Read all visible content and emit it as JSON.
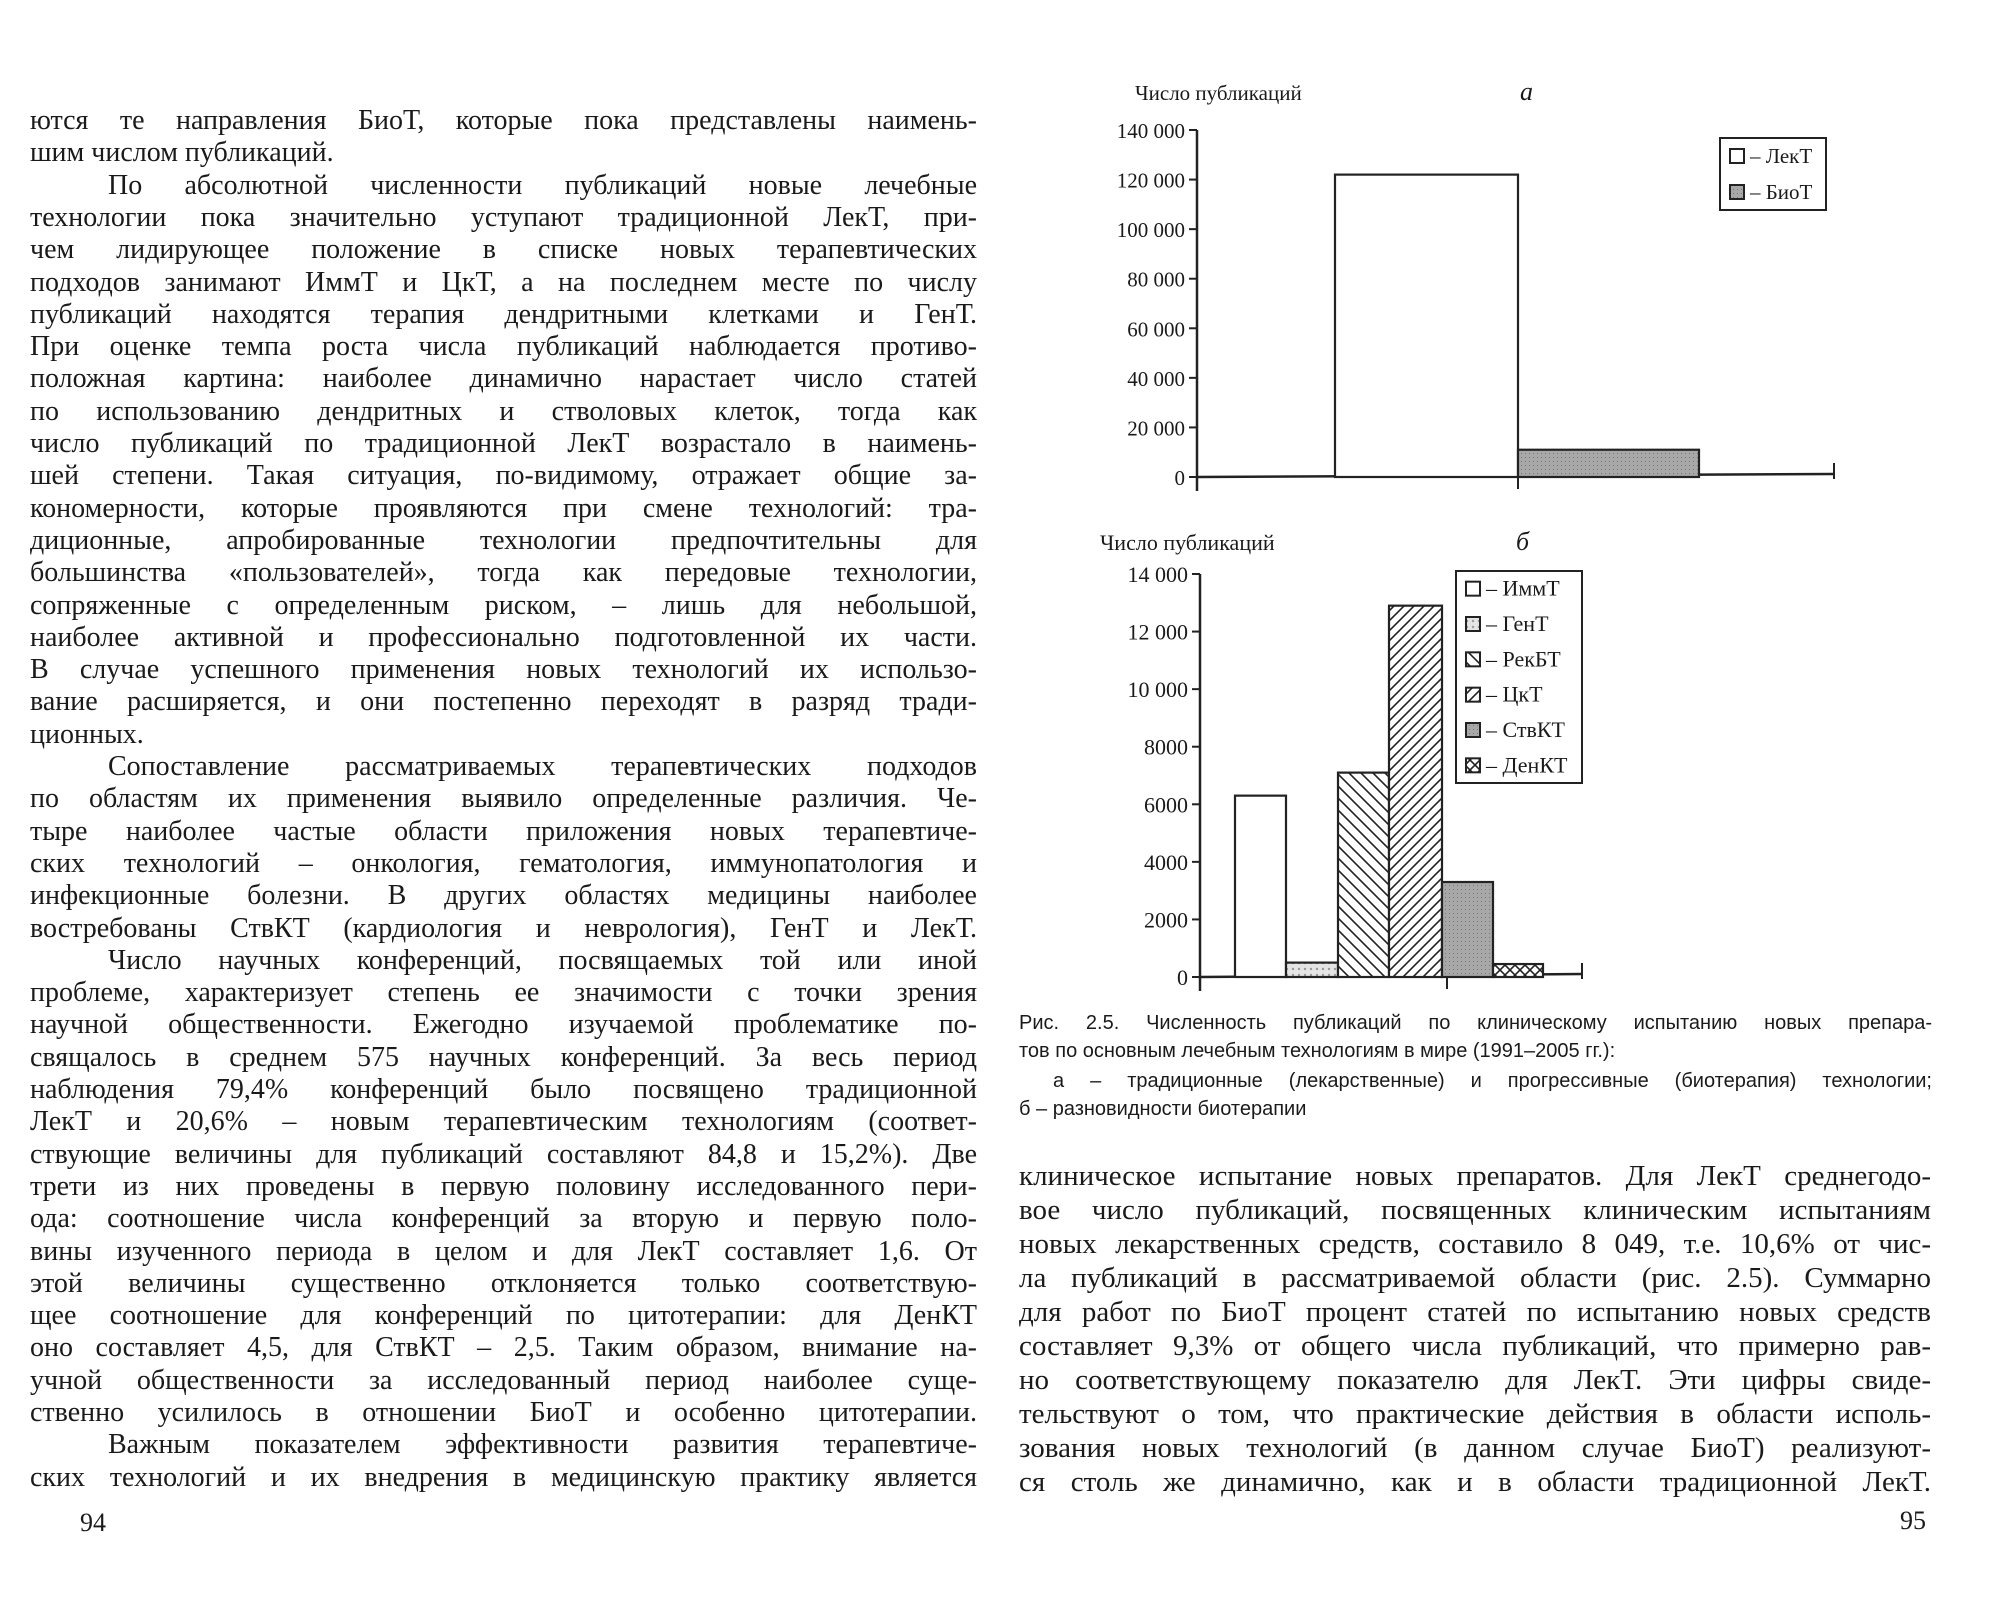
{
  "left_page": {
    "page_number": "94",
    "lines": [
      "ются те направления БиоТ, которые пока представлены наимень-",
      "шим числом публикаций.",
      "По абсолютной численности публикаций новые лечебные",
      "технологии пока значительно уступают традиционной ЛекТ, при-",
      "чем лидирующее положение в списке новых терапевтических",
      "подходов занимают ИммТ и ЦкТ, а на последнем месте по числу",
      "публикаций находятся терапия дендритными клетками и ГенТ.",
      "При оценке темпа роста числа публикаций наблюдается противо-",
      "положная картина: наиболее динамично нарастает число статей",
      "по использованию дендритных и стволовых клеток, тогда как",
      "число публикаций по традиционной ЛекТ возрастало в наимень-",
      "шей степени. Такая ситуация, по-видимому, отражает общие за-",
      "кономерности, которые проявляются при смене технологий: тра-",
      "диционные, апробированные технологии предпочтительны для",
      "большинства «пользователей», тогда как передовые технологии,",
      "сопряженные с определенным риском, – лишь для небольшой,",
      "наиболее активной и профессионально подготовленной их части.",
      "В случае успешного применения новых технологий их использо-",
      "вание расширяется, и они постепенно переходят в разряд тради-",
      "ционных.",
      "Сопоставление рассматриваемых терапевтических подходов",
      "по областям их применения выявило определенные различия. Че-",
      "тыре наиболее частые области приложения новых терапевтиче-",
      "ских технологий – онкология, гематология, иммунопатология и",
      "инфекционные болезни. В других областях медицины наиболее",
      "востребованы СтвКТ (кардиология и неврология), ГенТ и ЛекТ.",
      "Число научных конференций, посвящаемых той или иной",
      "проблеме, характеризует степень ее значимости с точки зрения",
      "научной общественности. Ежегодно изучаемой проблематике по-",
      "свящалось в среднем 575 научных конференций. За весь период",
      "наблюдения 79,4% конференций было посвящено традиционной",
      "ЛекТ и 20,6% – новым терапевтическим технологиям (соответ-",
      "ствующие величины для публикаций составляют 84,8 и 15,2%). Две",
      "трети из них проведены в первую половину исследованного пери-",
      "ода: соотношение числа конференций за вторую и первую поло-",
      "вины изученного периода в целом и для ЛекТ составляет 1,6. От",
      "этой величины существенно отклоняется только соответствую-",
      "щее соотношение для конференций по цитотерапии: для ДенКТ",
      "оно составляет 4,5, для СтвКТ – 2,5. Таким образом, внимание на-",
      "учной общественности за исследованный период наиболее суще-",
      "ственно усилилось в отношении БиоТ и особенно цитотерапии.",
      "Важным показателем эффективности развития терапевтиче-",
      "ских технологий и их внедрения в медицинскую практику является"
    ]
  },
  "right_page": {
    "page_number": "95",
    "caption": [
      "Рис. 2.5. Численность публикаций по клиническому испытанию новых препара-",
      "тов по основным лечебным технологиям в мире (1991–2005 гг.):",
      "а – традиционные (лекарственные) и прогрессивные (биотерапия) технологии;",
      "б – разновидности биотерапии"
    ],
    "lines": [
      "клиническое испытание новых препаратов. Для ЛекТ среднегодо-",
      "вое число публикаций, посвященных клиническим испытаниям",
      "новых лекарственных средств, составило 8 049, т.е. 10,6% от чис-",
      "ла публикаций в рассматриваемой области (рис. 2.5). Суммарно",
      "для работ по БиоТ процент статей по испытанию новых средств",
      "составляет 9,3% от общего числа публикаций, что примерно рав-",
      "но соответствующему показателю для ЛекТ. Эти цифры свиде-",
      "тельствуют о том, что практические действия в области исполь-",
      "зования новых технологий (в данном случае БиоТ) реализуют-",
      "ся столь же динамично, как и в области традиционной ЛекТ."
    ]
  },
  "chart_data": [
    {
      "type": "bar",
      "panel_label": "а",
      "ylabel": "Число публикаций",
      "ylim": [
        0,
        140000
      ],
      "yticks": [
        "0",
        "20 000",
        "40 000",
        "60 000",
        "80 000",
        "100 000",
        "120 000",
        "140 000"
      ],
      "legend_position": "top-right",
      "series": [
        {
          "name": "ЛекТ",
          "value": 122000,
          "fill": "white"
        },
        {
          "name": "БиоТ",
          "value": 11000,
          "fill": "gray"
        }
      ]
    },
    {
      "type": "bar",
      "panel_label": "б",
      "ylabel": "Число публикаций",
      "ylim": [
        0,
        14000
      ],
      "yticks": [
        "0",
        "2000",
        "4000",
        "6000",
        "8000",
        "10 000",
        "12 000",
        "14 000"
      ],
      "legend_position": "top-right",
      "series": [
        {
          "name": "ИммТ",
          "value": 6300,
          "fill": "white"
        },
        {
          "name": "ГенТ",
          "value": 500,
          "fill": "dots"
        },
        {
          "name": "РекБТ",
          "value": 7100,
          "fill": "hatch-back"
        },
        {
          "name": "ЦкТ",
          "value": 12900,
          "fill": "hatch-fwd"
        },
        {
          "name": "СтвКТ",
          "value": 3300,
          "fill": "gray"
        },
        {
          "name": "ДенКТ",
          "value": 450,
          "fill": "cross"
        }
      ]
    }
  ]
}
